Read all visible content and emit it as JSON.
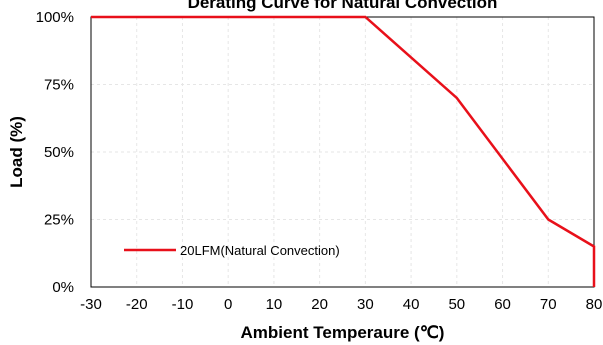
{
  "chart_data": {
    "type": "line",
    "title": "Derating Curve for Natural Convection",
    "xlabel": "Ambient Temperaure (℃)",
    "ylabel": "Load (%)",
    "xlim": [
      -30,
      80
    ],
    "ylim": [
      0,
      100
    ],
    "xticks": [
      -30,
      -20,
      -10,
      0,
      10,
      20,
      30,
      40,
      50,
      60,
      70,
      80
    ],
    "xtick_labels": [
      "-30",
      "-20",
      "-10",
      "0",
      "10",
      "20",
      "30",
      "40",
      "50",
      "60",
      "70",
      "80"
    ],
    "yticks": [
      0,
      25,
      50,
      75,
      100
    ],
    "ytick_labels": [
      "0%",
      "25%",
      "50%",
      "75%",
      "100%"
    ],
    "grid": true,
    "legend_position": "bottom-left",
    "series": [
      {
        "name": "20LFM(Natural Convection)",
        "color": "#e8101a",
        "x": [
          -30,
          30,
          50,
          70,
          80,
          80
        ],
        "y": [
          100,
          100,
          70,
          25,
          15,
          0
        ]
      }
    ]
  }
}
